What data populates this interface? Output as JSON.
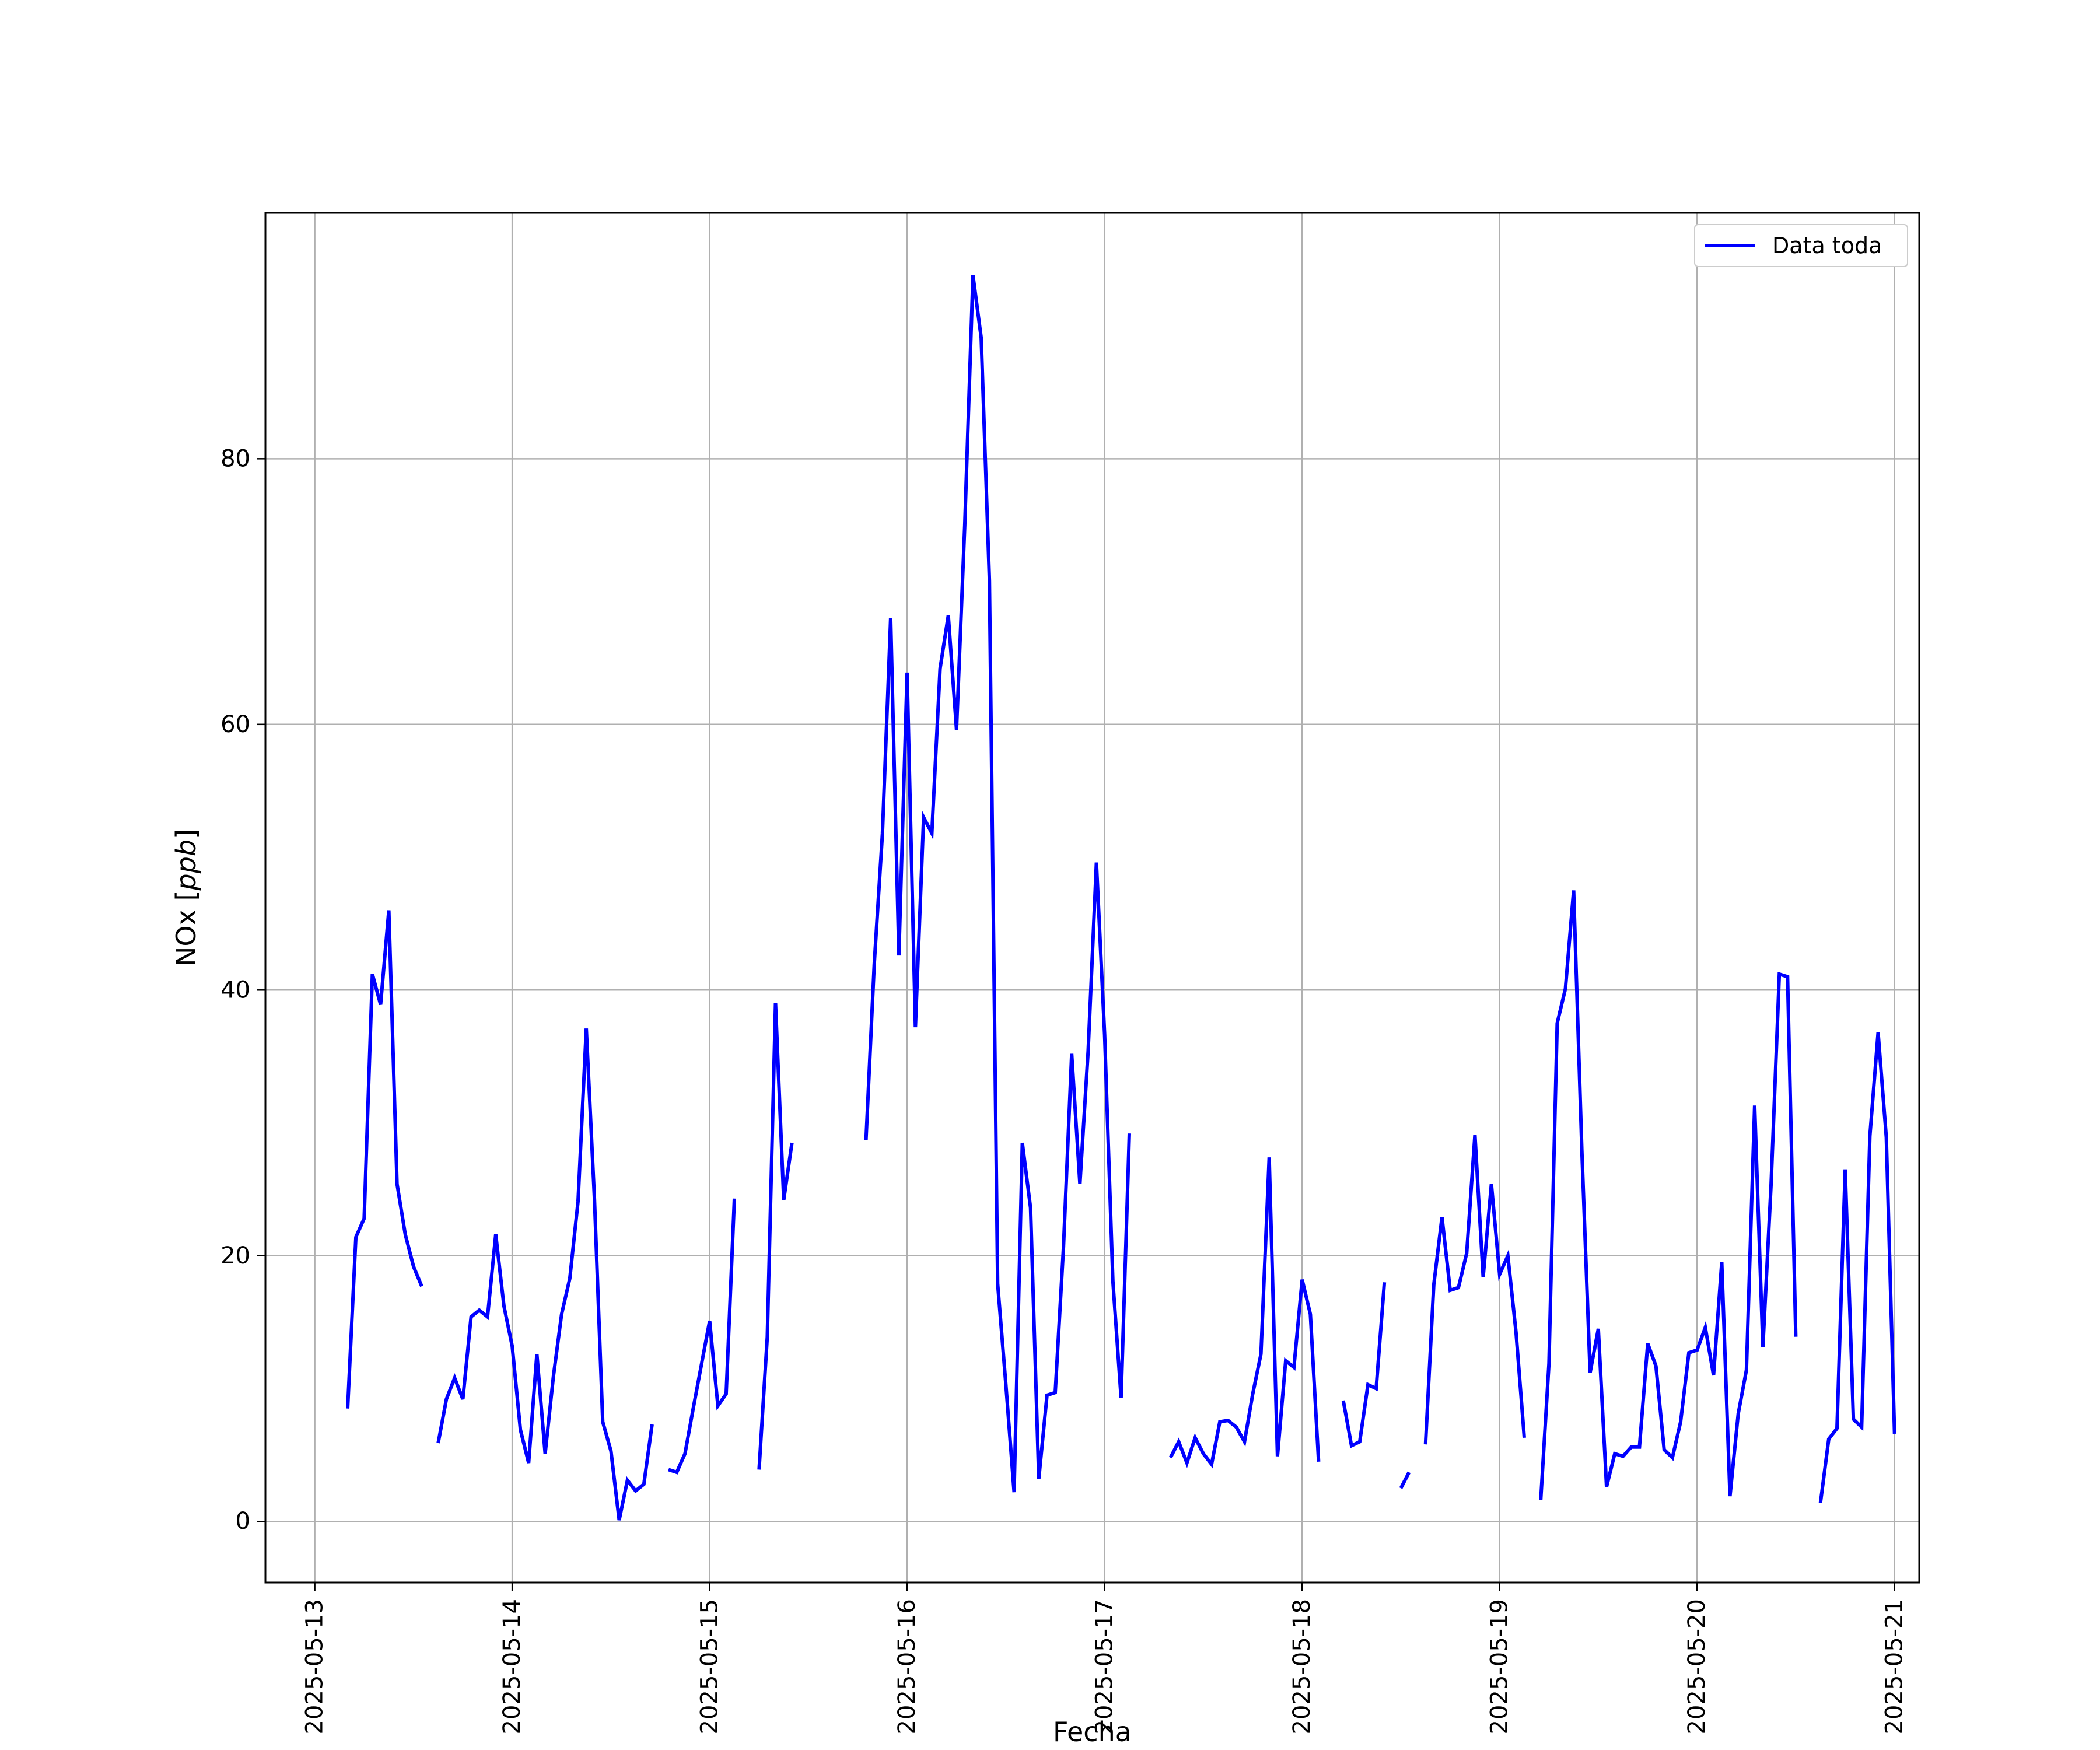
{
  "chart_data": {
    "type": "line",
    "xlabel": "Fecha",
    "ylabel": "NOx [ppb]",
    "ylabel_plain": "NOx [",
    "ylabel_italic": "ppb",
    "ylabel_close": "]",
    "x_axis": {
      "type": "date",
      "range": [
        "2025-05-12T18:00",
        "2025-05-21T03:00"
      ],
      "ticks": [
        "2025-05-13",
        "2025-05-14",
        "2025-05-15",
        "2025-05-16",
        "2025-05-17",
        "2025-05-18",
        "2025-05-19",
        "2025-05-20",
        "2025-05-21"
      ]
    },
    "y_axis": {
      "range": [
        -4.6,
        98.5
      ],
      "ticks": [
        0,
        20,
        40,
        60,
        80
      ]
    },
    "grid": true,
    "legend": {
      "position": "top-right",
      "entries": [
        "Data toda"
      ]
    },
    "colors": {
      "series": "#0000ff",
      "grid": "#b0b0b0",
      "axes": "#000000"
    },
    "series": [
      {
        "name": "Data toda",
        "segments": [
          [
            [
              "2025-05-13T04:00",
              8.5
            ],
            [
              "2025-05-13T05:00",
              21.4
            ],
            [
              "2025-05-13T06:00",
              22.8
            ],
            [
              "2025-05-13T07:00",
              41.2
            ],
            [
              "2025-05-13T08:00",
              38.9
            ],
            [
              "2025-05-13T09:00",
              46.0
            ],
            [
              "2025-05-13T10:00",
              25.4
            ],
            [
              "2025-05-13T11:00",
              21.6
            ],
            [
              "2025-05-13T12:00",
              19.2
            ],
            [
              "2025-05-13T13:00",
              17.7
            ]
          ],
          [
            [
              "2025-05-13T15:00",
              5.9
            ],
            [
              "2025-05-13T16:00",
              9.2
            ],
            [
              "2025-05-13T17:00",
              10.8
            ],
            [
              "2025-05-13T18:00",
              9.2
            ],
            [
              "2025-05-13T19:00",
              15.4
            ],
            [
              "2025-05-13T20:00",
              15.9
            ],
            [
              "2025-05-13T21:00",
              15.4
            ],
            [
              "2025-05-13T22:00",
              21.6
            ],
            [
              "2025-05-13T23:00",
              16.2
            ],
            [
              "2025-05-14T00:00",
              13.2
            ],
            [
              "2025-05-14T01:00",
              6.9
            ],
            [
              "2025-05-14T02:00",
              4.4
            ],
            [
              "2025-05-14T03:00",
              12.6
            ],
            [
              "2025-05-14T04:00",
              5.1
            ],
            [
              "2025-05-14T05:00",
              10.9
            ],
            [
              "2025-05-14T06:00",
              15.6
            ],
            [
              "2025-05-14T07:00",
              18.3
            ],
            [
              "2025-05-14T08:00",
              24.1
            ],
            [
              "2025-05-14T09:00",
              37.1
            ],
            [
              "2025-05-14T10:00",
              24.2
            ],
            [
              "2025-05-14T11:00",
              7.5
            ],
            [
              "2025-05-14T12:00",
              5.3
            ],
            [
              "2025-05-14T13:00",
              0.1
            ],
            [
              "2025-05-14T14:00",
              3.1
            ],
            [
              "2025-05-14T15:00",
              2.3
            ],
            [
              "2025-05-14T16:00",
              2.8
            ],
            [
              "2025-05-14T17:00",
              7.3
            ]
          ],
          [
            [
              "2025-05-14T19:00",
              3.9
            ],
            [
              "2025-05-14T20:00",
              3.7
            ],
            [
              "2025-05-14T21:00",
              5.1
            ],
            [
              "2025-05-14T22:00",
              8.5
            ],
            [
              "2025-05-14T23:00",
              11.8
            ],
            [
              "2025-05-15T00:00",
              15.1
            ],
            [
              "2025-05-15T01:00",
              8.7
            ],
            [
              "2025-05-15T02:00",
              9.6
            ],
            [
              "2025-05-15T03:00",
              24.3
            ]
          ],
          [
            [
              "2025-05-15T06:00",
              3.9
            ],
            [
              "2025-05-15T07:00",
              13.9
            ],
            [
              "2025-05-15T08:00",
              39.0
            ],
            [
              "2025-05-15T09:00",
              24.2
            ],
            [
              "2025-05-15T10:00",
              28.5
            ]
          ],
          [
            [
              "2025-05-15T19:00",
              28.7
            ],
            [
              "2025-05-15T20:00",
              41.9
            ],
            [
              "2025-05-15T21:00",
              51.8
            ],
            [
              "2025-05-15T22:00",
              68.0
            ],
            [
              "2025-05-15T23:00",
              42.6
            ],
            [
              "2025-05-16T00:00",
              63.9
            ],
            [
              "2025-05-16T01:00",
              37.2
            ],
            [
              "2025-05-16T02:00",
              53.0
            ],
            [
              "2025-05-16T03:00",
              51.8
            ],
            [
              "2025-05-16T04:00",
              64.2
            ],
            [
              "2025-05-16T05:00",
              68.2
            ],
            [
              "2025-05-16T06:00",
              59.6
            ],
            [
              "2025-05-16T07:00",
              75.0
            ],
            [
              "2025-05-16T08:00",
              93.8
            ],
            [
              "2025-05-16T09:00",
              89.1
            ],
            [
              "2025-05-16T10:00",
              70.8
            ],
            [
              "2025-05-16T11:00",
              17.9
            ],
            [
              "2025-05-16T12:00",
              10.3
            ],
            [
              "2025-05-16T13:00",
              2.2
            ],
            [
              "2025-05-16T14:00",
              28.5
            ],
            [
              "2025-05-16T15:00",
              23.6
            ],
            [
              "2025-05-16T16:00",
              3.2
            ],
            [
              "2025-05-16T17:00",
              9.5
            ],
            [
              "2025-05-16T18:00",
              9.7
            ],
            [
              "2025-05-16T19:00",
              20.6
            ],
            [
              "2025-05-16T20:00",
              35.2
            ],
            [
              "2025-05-16T21:00",
              25.4
            ],
            [
              "2025-05-16T22:00",
              35.4
            ],
            [
              "2025-05-16T23:00",
              49.6
            ],
            [
              "2025-05-17T00:00",
              36.6
            ],
            [
              "2025-05-17T01:00",
              18.1
            ],
            [
              "2025-05-17T02:00",
              9.3
            ],
            [
              "2025-05-17T03:00",
              29.2
            ]
          ],
          [
            [
              "2025-05-17T08:00",
              4.8
            ],
            [
              "2025-05-17T09:00",
              6.0
            ],
            [
              "2025-05-17T10:00",
              4.4
            ],
            [
              "2025-05-17T11:00",
              6.3
            ],
            [
              "2025-05-17T12:00",
              5.1
            ],
            [
              "2025-05-17T13:00",
              4.3
            ],
            [
              "2025-05-17T14:00",
              7.5
            ],
            [
              "2025-05-17T15:00",
              7.6
            ],
            [
              "2025-05-17T16:00",
              7.1
            ],
            [
              "2025-05-17T17:00",
              6.0
            ],
            [
              "2025-05-17T18:00",
              9.6
            ],
            [
              "2025-05-17T19:00",
              12.6
            ],
            [
              "2025-05-17T20:00",
              27.4
            ],
            [
              "2025-05-17T21:00",
              4.9
            ],
            [
              "2025-05-17T22:00",
              12.1
            ],
            [
              "2025-05-17T23:00",
              11.6
            ],
            [
              "2025-05-18T00:00",
              18.2
            ],
            [
              "2025-05-18T01:00",
              15.6
            ],
            [
              "2025-05-18T02:00",
              4.5
            ]
          ],
          [
            [
              "2025-05-18T05:00",
              9.1
            ],
            [
              "2025-05-18T06:00",
              5.7
            ],
            [
              "2025-05-18T07:00",
              6.0
            ],
            [
              "2025-05-18T08:00",
              10.3
            ],
            [
              "2025-05-18T09:00",
              10.0
            ],
            [
              "2025-05-18T10:00",
              18.0
            ]
          ],
          [
            [
              "2025-05-18T12:00",
              2.5
            ],
            [
              "2025-05-18T13:00",
              3.7
            ]
          ],
          [
            [
              "2025-05-18T15:00",
              5.8
            ],
            [
              "2025-05-18T16:00",
              17.8
            ],
            [
              "2025-05-18T17:00",
              22.9
            ],
            [
              "2025-05-18T18:00",
              17.4
            ],
            [
              "2025-05-18T19:00",
              17.6
            ],
            [
              "2025-05-18T20:00",
              20.2
            ],
            [
              "2025-05-18T21:00",
              29.1
            ],
            [
              "2025-05-18T22:00",
              18.4
            ],
            [
              "2025-05-18T23:00",
              25.4
            ],
            [
              "2025-05-19T00:00",
              18.6
            ],
            [
              "2025-05-19T01:00",
              20.0
            ],
            [
              "2025-05-19T02:00",
              14.2
            ],
            [
              "2025-05-19T03:00",
              6.3
            ]
          ],
          [
            [
              "2025-05-19T05:00",
              1.6
            ],
            [
              "2025-05-19T06:00",
              11.9
            ],
            [
              "2025-05-19T07:00",
              37.5
            ],
            [
              "2025-05-19T08:00",
              40.1
            ],
            [
              "2025-05-19T09:00",
              47.5
            ],
            [
              "2025-05-19T10:00",
              27.9
            ],
            [
              "2025-05-19T11:00",
              11.2
            ],
            [
              "2025-05-19T12:00",
              14.5
            ],
            [
              "2025-05-19T13:00",
              2.6
            ],
            [
              "2025-05-19T14:00",
              5.1
            ],
            [
              "2025-05-19T15:00",
              4.9
            ],
            [
              "2025-05-19T16:00",
              5.6
            ],
            [
              "2025-05-19T17:00",
              5.6
            ],
            [
              "2025-05-19T18:00",
              13.4
            ],
            [
              "2025-05-19T19:00",
              11.7
            ],
            [
              "2025-05-19T20:00",
              5.4
            ],
            [
              "2025-05-19T21:00",
              4.8
            ],
            [
              "2025-05-19T22:00",
              7.5
            ],
            [
              "2025-05-19T23:00",
              12.7
            ],
            [
              "2025-05-20T00:00",
              12.9
            ],
            [
              "2025-05-20T01:00",
              14.6
            ],
            [
              "2025-05-20T02:00",
              11.0
            ],
            [
              "2025-05-20T03:00",
              19.5
            ],
            [
              "2025-05-20T04:00",
              1.9
            ],
            [
              "2025-05-20T05:00",
              8.1
            ],
            [
              "2025-05-20T06:00",
              11.4
            ],
            [
              "2025-05-20T07:00",
              31.3
            ],
            [
              "2025-05-20T08:00",
              13.1
            ],
            [
              "2025-05-20T09:00",
              25.4
            ],
            [
              "2025-05-20T10:00",
              41.2
            ],
            [
              "2025-05-20T11:00",
              41.0
            ],
            [
              "2025-05-20T12:00",
              13.9
            ]
          ],
          [
            [
              "2025-05-20T15:00",
              1.4
            ],
            [
              "2025-05-20T16:00",
              6.2
            ],
            [
              "2025-05-20T17:00",
              7.0
            ],
            [
              "2025-05-20T18:00",
              26.5
            ],
            [
              "2025-05-20T19:00",
              7.7
            ],
            [
              "2025-05-20T20:00",
              7.1
            ],
            [
              "2025-05-20T21:00",
              29.0
            ],
            [
              "2025-05-20T22:00",
              36.8
            ],
            [
              "2025-05-20T23:00",
              28.9
            ],
            [
              "2025-05-21T00:00",
              6.6
            ]
          ]
        ]
      }
    ]
  }
}
